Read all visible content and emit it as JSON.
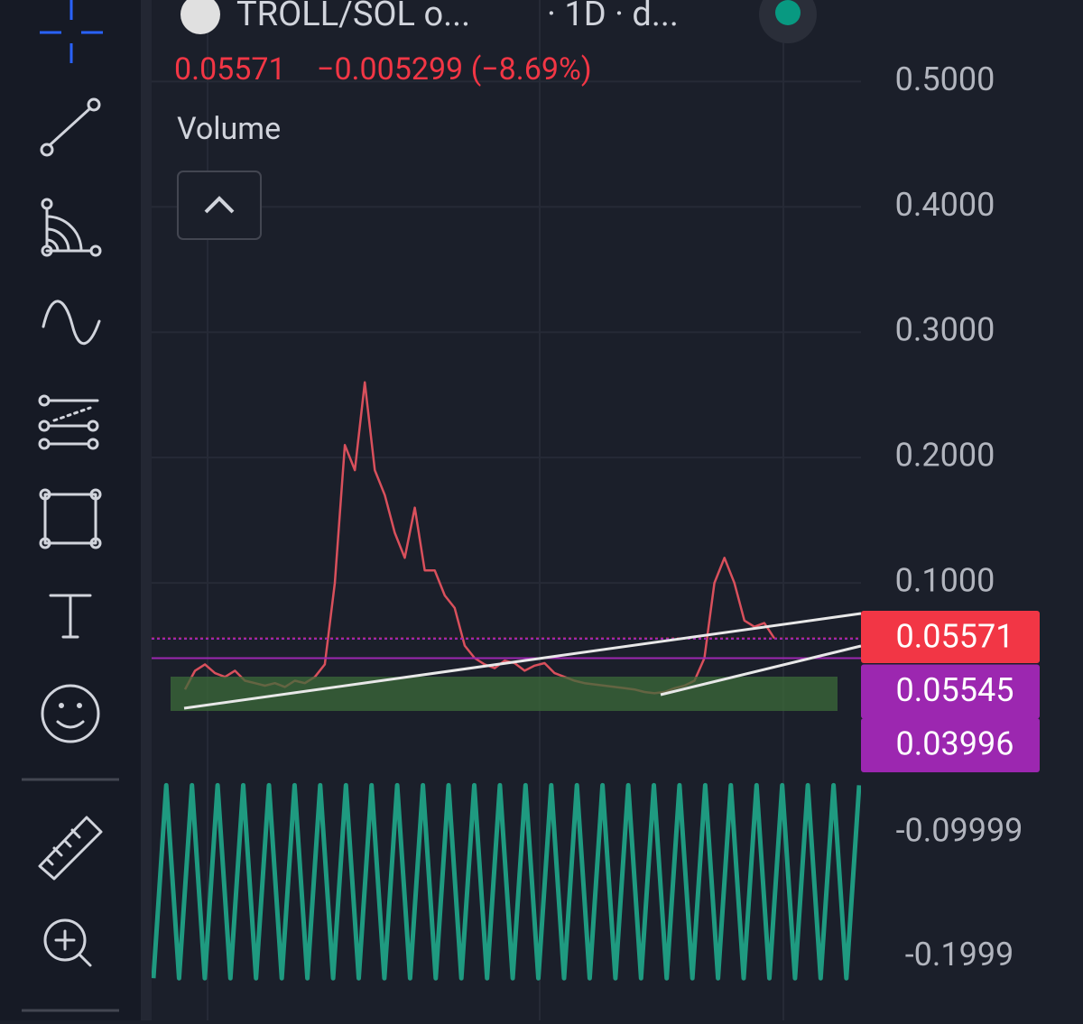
{
  "header": {
    "symbol": "TROLL/SOL o...",
    "interval": "· 1D · d...",
    "last": "0.05571",
    "change": "−0.005299 (−8.69%)",
    "indicator": "Volume"
  },
  "chart_data": [
    {
      "type": "line",
      "series": [
        {
          "color": "#d9505c",
          "values": [
            0.015,
            0.03,
            0.035,
            0.028,
            0.025,
            0.03,
            0.022,
            0.02,
            0.018,
            0.02,
            0.017,
            0.022,
            0.02,
            0.025,
            0.035,
            0.1,
            0.21,
            0.19,
            0.26,
            0.19,
            0.17,
            0.14,
            0.12,
            0.16,
            0.11,
            0.11,
            0.09,
            0.08,
            0.05,
            0.04,
            0.035,
            0.032,
            0.038,
            0.036,
            0.03,
            0.034,
            0.036,
            0.028,
            0.025,
            0.022,
            0.02,
            0.019,
            0.018,
            0.017,
            0.016,
            0.015,
            0.013,
            0.012,
            0.013,
            0.016,
            0.018,
            0.022,
            0.04,
            0.1,
            0.12,
            0.1,
            0.07,
            0.065,
            0.068,
            0.05571
          ]
        }
      ],
      "ylim": [
        -0.05,
        0.56
      ],
      "yticks": [
        {
          "value": 0.1,
          "label": "0.1000"
        },
        {
          "value": 0.2,
          "label": "0.2000"
        },
        {
          "value": 0.3,
          "label": "0.3000"
        },
        {
          "value": 0.4,
          "label": "0.4000"
        },
        {
          "value": 0.5,
          "label": "0.5000"
        }
      ],
      "grid": true,
      "price_lines": [
        {
          "value": 0.05571,
          "color": "#f23645"
        },
        {
          "value": 0.05545,
          "color": "#9c27b0"
        },
        {
          "value": 0.03996,
          "color": "#9c27b0"
        }
      ]
    },
    {
      "type": "line",
      "series": [
        {
          "color": "#1f9a80",
          "values": [
            -0.217,
            -0.062,
            -0.217,
            -0.062,
            -0.217,
            -0.062,
            -0.217,
            -0.062,
            -0.217,
            -0.062,
            -0.217,
            -0.062,
            -0.217,
            -0.062,
            -0.217,
            -0.062,
            -0.217,
            -0.062,
            -0.217,
            -0.062,
            -0.217,
            -0.062,
            -0.217,
            -0.062,
            -0.217,
            -0.062,
            -0.217,
            -0.062,
            -0.217,
            -0.062,
            -0.217,
            -0.062,
            -0.217,
            -0.062,
            -0.217,
            -0.062,
            -0.217,
            -0.062,
            -0.217,
            -0.062,
            -0.217,
            -0.062,
            -0.217,
            -0.062,
            -0.217,
            -0.062,
            -0.217,
            -0.062,
            -0.217,
            -0.062,
            -0.217,
            -0.062,
            -0.217,
            -0.062,
            -0.217,
            -0.062
          ]
        }
      ],
      "ylim": [
        -0.235,
        -0.045
      ],
      "yticks": [
        -0.09999,
        -0.1999
      ]
    }
  ]
}
